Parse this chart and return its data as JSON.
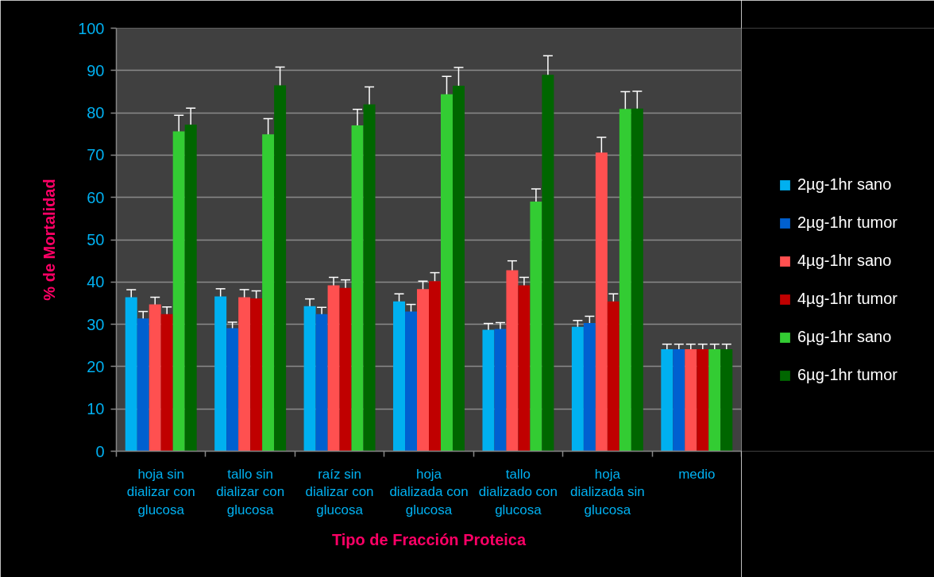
{
  "chart_data": {
    "type": "bar",
    "xlabel": "Tipo de Fracción Proteica",
    "ylabel": "% de Mortalidad",
    "categories": [
      "hoja sin dializar con glucosa",
      "tallo sin dializar con glucosa",
      "raíz sin dializar con glucosa",
      "hoja dializada con glucosa",
      "tallo dializado con glucosa",
      "hoja dializada sin glucosa",
      "medio"
    ],
    "series": [
      {
        "name": "2µg-1hr sano",
        "color": "#00b0f0",
        "values": [
          36.4,
          36.6,
          34.3,
          35.4,
          28.7,
          29.4,
          24.1
        ],
        "errors": [
          1.8,
          1.8,
          1.7,
          1.8,
          1.5,
          1.5,
          1.2
        ]
      },
      {
        "name": "2µg-1hr tumor",
        "color": "#0060d0",
        "values": [
          31.4,
          29.1,
          32.4,
          33.0,
          28.9,
          30.3,
          24.1
        ],
        "errors": [
          1.6,
          1.4,
          1.6,
          1.7,
          1.5,
          1.6,
          1.2
        ]
      },
      {
        "name": "4µg-1hr sano",
        "color": "#ff5050",
        "values": [
          34.7,
          36.4,
          39.2,
          38.3,
          42.8,
          70.6,
          24.1
        ],
        "errors": [
          1.7,
          1.8,
          1.9,
          1.9,
          2.2,
          3.6,
          1.2
        ]
      },
      {
        "name": "4µg-1hr tumor",
        "color": "#c00000",
        "values": [
          32.4,
          36.1,
          38.6,
          40.2,
          39.2,
          35.4,
          24.1
        ],
        "errors": [
          1.7,
          1.8,
          1.9,
          2.0,
          1.9,
          1.8,
          1.2
        ]
      },
      {
        "name": "6µg-1hr sano",
        "color": "#33cc33",
        "values": [
          75.6,
          74.9,
          77.0,
          84.4,
          59.0,
          80.9,
          24.1
        ],
        "errors": [
          3.8,
          3.7,
          3.8,
          4.2,
          3.0,
          4.1,
          1.2
        ]
      },
      {
        "name": "6µg-1hr tumor",
        "color": "#006600",
        "values": [
          77.2,
          86.5,
          82.0,
          86.4,
          89.0,
          81.0,
          24.1
        ],
        "errors": [
          3.9,
          4.3,
          4.1,
          4.3,
          4.5,
          4.1,
          1.2
        ]
      }
    ],
    "ylim": [
      0,
      100
    ],
    "yticks": [
      0,
      10,
      20,
      30,
      40,
      50,
      60,
      70,
      80,
      90,
      100
    ],
    "grid": "y",
    "legend": "right"
  }
}
